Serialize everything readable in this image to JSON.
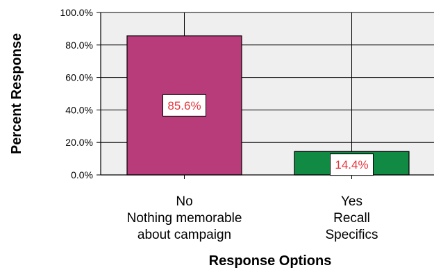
{
  "chart_data": {
    "type": "bar",
    "categories": [
      [
        "No",
        "Nothing memorable",
        "about campaign"
      ],
      [
        "Yes",
        "Recall",
        "Specifics"
      ]
    ],
    "values": [
      85.6,
      14.4
    ],
    "data_labels": [
      "85.6%",
      "14.4%"
    ],
    "bar_colors": [
      "#b83c7a",
      "#118a44"
    ],
    "xlabel": "Response Options",
    "ylabel": "Percent Response",
    "ylim": [
      0,
      100
    ],
    "yticks": [
      0,
      20,
      40,
      60,
      80,
      100
    ],
    "ytick_labels": [
      "0.0%",
      "20.0%",
      "40.0%",
      "60.0%",
      "80.0%",
      "100.0%"
    ],
    "grid": true,
    "plot_background": "#efefef",
    "label_text_color": "#e8343c"
  }
}
